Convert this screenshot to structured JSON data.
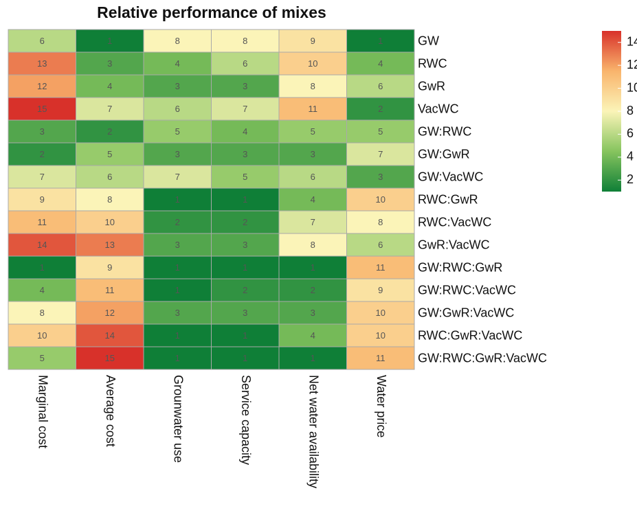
{
  "chart_data": {
    "type": "heatmap",
    "title": "Relative performance of mixes",
    "columns": [
      "Marginal cost",
      "Average cost",
      "Grounwater use",
      "Service capacity",
      "Net water availability",
      "Water price"
    ],
    "rows": [
      "GW",
      "RWC",
      "GwR",
      "VacWC",
      "GW:RWC",
      "GW:GwR",
      "GW:VacWC",
      "RWC:GwR",
      "RWC:VacWC",
      "GwR:VacWC",
      "GW:RWC:GwR",
      "GW:RWC:VacWC",
      "GW:GwR:VacWC",
      "RWC:GwR:VacWC",
      "GW:RWC:GwR:VacWC"
    ],
    "values": [
      [
        6,
        1,
        8,
        8,
        9,
        1
      ],
      [
        13,
        3,
        4,
        6,
        10,
        4
      ],
      [
        12,
        4,
        3,
        3,
        8,
        6
      ],
      [
        15,
        7,
        6,
        7,
        11,
        2
      ],
      [
        3,
        2,
        5,
        4,
        5,
        5
      ],
      [
        2,
        5,
        3,
        3,
        3,
        7
      ],
      [
        7,
        6,
        7,
        5,
        6,
        3
      ],
      [
        9,
        8,
        1,
        1,
        4,
        10
      ],
      [
        11,
        10,
        2,
        2,
        7,
        8
      ],
      [
        14,
        13,
        3,
        3,
        8,
        6
      ],
      [
        1,
        9,
        1,
        1,
        1,
        11
      ],
      [
        4,
        11,
        1,
        2,
        2,
        9
      ],
      [
        8,
        12,
        3,
        3,
        3,
        10
      ],
      [
        10,
        14,
        1,
        1,
        4,
        10
      ],
      [
        5,
        15,
        1,
        1,
        1,
        11
      ]
    ],
    "colors": [
      "#0f7f37",
      "#86c45e",
      "#fbf4b8",
      "#f9b46c",
      "#d8312a"
    ],
    "clim": [
      1,
      15
    ],
    "cticks": [
      2,
      4,
      6,
      8,
      10,
      12,
      14
    ]
  }
}
